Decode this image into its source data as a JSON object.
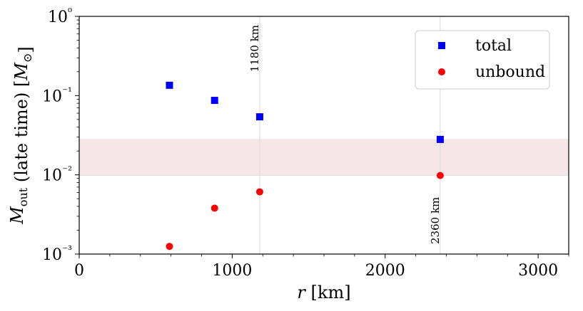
{
  "chart_data": {
    "type": "scatter",
    "xlabel": "r [km]",
    "ylabel": "M_out (late time) [M_⊙]",
    "xlim": [
      0,
      3200
    ],
    "ylim": [
      0.001,
      1
    ],
    "yscale": "log",
    "grid": false,
    "legend_position": "top-right",
    "x_ticks": [
      {
        "value": 0,
        "label": "0"
      },
      {
        "value": 1000,
        "label": "1000"
      },
      {
        "value": 2000,
        "label": "2000"
      },
      {
        "value": 3000,
        "label": "3000"
      }
    ],
    "y_ticks": [
      {
        "value": 0.001,
        "label": "10⁻³"
      },
      {
        "value": 0.01,
        "label": "10⁻²"
      },
      {
        "value": 0.1,
        "label": "10⁻¹"
      },
      {
        "value": 1,
        "label": "10⁰"
      }
    ],
    "series": [
      {
        "name": "total",
        "marker": "square",
        "color": "#0000ff",
        "points": [
          {
            "x": 590,
            "y": 0.135
          },
          {
            "x": 885,
            "y": 0.087
          },
          {
            "x": 1180,
            "y": 0.054
          },
          {
            "x": 2360,
            "y": 0.028
          }
        ]
      },
      {
        "name": "unbound",
        "marker": "circle",
        "color": "#ff0000",
        "points": [
          {
            "x": 590,
            "y": 0.00125
          },
          {
            "x": 885,
            "y": 0.0038
          },
          {
            "x": 1180,
            "y": 0.0061
          },
          {
            "x": 2360,
            "y": 0.0098
          }
        ]
      }
    ],
    "shaded_band": {
      "y_range": [
        0.0098,
        0.028
      ],
      "color": "#f5e7e7"
    },
    "vertical_lines": [
      {
        "x": 1180,
        "label": "1180 km",
        "label_anchor": "top"
      },
      {
        "x": 2360,
        "label": "2360 km",
        "label_anchor": "bottom"
      }
    ],
    "reference_line_color": "#dddddd",
    "reference_label_color": "#888888"
  }
}
